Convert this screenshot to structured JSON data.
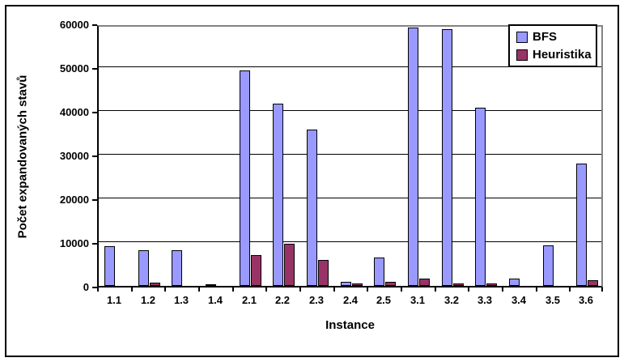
{
  "figure": {
    "background_color": "#ffffff",
    "border_color": "#000000"
  },
  "chart_data": {
    "type": "bar",
    "title": "",
    "xlabel": "Instance",
    "ylabel": "Počet expandovaných stavů",
    "categories": [
      "1.1",
      "1.2",
      "1.3",
      "1.4",
      "2.1",
      "2.2",
      "2.3",
      "2.4",
      "2.5",
      "3.1",
      "3.2",
      "3.3",
      "3.4",
      "3.5",
      "3.6"
    ],
    "series": [
      {
        "name": "BFS",
        "color": "#9999FF",
        "values": [
          9000,
          8100,
          8100,
          300,
          49300,
          41700,
          35800,
          1000,
          6500,
          59000,
          58700,
          40800,
          1700,
          9300,
          28000
        ]
      },
      {
        "name": "Heuristika",
        "color": "#993366",
        "values": [
          0,
          700,
          0,
          0,
          7100,
          9700,
          5900,
          600,
          850,
          1600,
          550,
          500,
          0,
          0,
          1300
        ]
      }
    ],
    "ylim": [
      0,
      60000
    ],
    "ytick_step": 10000,
    "ytick_labels": [
      "0",
      "10000",
      "20000",
      "30000",
      "40000",
      "50000",
      "60000"
    ],
    "grid": true,
    "gridline_color": "#000000",
    "plot_border_color": "#848284",
    "legend_position": "top-right"
  }
}
